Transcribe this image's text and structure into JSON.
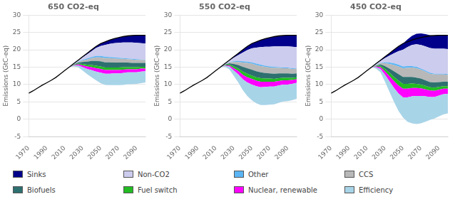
{
  "chart_data": [
    {
      "type": "area",
      "title": "650 CO2-eq",
      "y_label": "Emissions (GtC-eq)",
      "stacked": true,
      "grid": true,
      "legend": "bottom",
      "x": [
        1970,
        1975,
        1980,
        1985,
        1990,
        1995,
        2000,
        2005,
        2010,
        2015,
        2020,
        2025,
        2030,
        2035,
        2040,
        2045,
        2050,
        2055,
        2060,
        2065,
        2070,
        2075,
        2080,
        2085,
        2090,
        2095,
        2100
      ],
      "xlim": [
        1970,
        2100
      ],
      "xticks": [
        1970,
        1990,
        2010,
        2030,
        2050,
        2070,
        2090
      ],
      "ylim": [
        -5,
        30
      ],
      "yticks": [
        -5,
        0,
        5,
        10,
        15,
        20,
        25,
        30
      ],
      "series": [
        {
          "values": [
            7.5,
            8.2,
            9.0,
            9.8,
            10.5,
            11.2,
            12.0,
            13.0,
            14.0,
            15.0,
            15.2,
            15.0,
            14.0,
            13.0,
            12.1,
            11.2,
            10.4,
            9.9,
            9.8,
            9.8,
            9.8,
            9.9,
            10.1,
            10.1,
            10.2,
            10.4,
            10.6
          ]
        },
        {
          "name": "Efficiency",
          "color": "#a8d4e8",
          "values": [
            0.0,
            0.0,
            0.0,
            0.0,
            0.0,
            0.0,
            0.0,
            0.0,
            0.0,
            0.0,
            0.2,
            0.5,
            1.0,
            1.5,
            2.0,
            2.5,
            3.0,
            3.2,
            3.3,
            3.4,
            3.4,
            3.4,
            3.4,
            3.4,
            3.3,
            3.3,
            3.2
          ]
        },
        {
          "name": "Nuclear, renewable",
          "color": "#ff00ff",
          "values": [
            0.0,
            0.0,
            0.0,
            0.0,
            0.0,
            0.0,
            0.0,
            0.0,
            0.0,
            0.0,
            0.1,
            0.3,
            0.5,
            0.7,
            0.9,
            1.0,
            1.1,
            1.1,
            1.1,
            1.0,
            1.0,
            1.0,
            0.9,
            0.9,
            0.9,
            0.9,
            0.8
          ]
        },
        {
          "name": "Fuel switch",
          "color": "#22bb22",
          "values": [
            0.0,
            0.0,
            0.0,
            0.0,
            0.0,
            0.0,
            0.0,
            0.0,
            0.0,
            0.0,
            0.1,
            0.2,
            0.4,
            0.5,
            0.6,
            0.7,
            0.7,
            0.7,
            0.7,
            0.7,
            0.7,
            0.7,
            0.6,
            0.6,
            0.6,
            0.5,
            0.5
          ]
        },
        {
          "name": "Biofuels",
          "color": "#2e7070",
          "values": [
            0.0,
            0.0,
            0.0,
            0.0,
            0.0,
            0.0,
            0.0,
            0.0,
            0.0,
            0.0,
            0.1,
            0.3,
            0.6,
            0.9,
            1.2,
            1.4,
            1.5,
            1.5,
            1.5,
            1.4,
            1.4,
            1.3,
            1.3,
            1.2,
            1.2,
            1.1,
            1.1
          ]
        },
        {
          "name": "CCS",
          "color": "#b8b8b8",
          "values": [
            0.0,
            0.0,
            0.0,
            0.0,
            0.0,
            0.0,
            0.0,
            0.0,
            0.0,
            0.0,
            0.1,
            0.2,
            0.4,
            0.6,
            0.8,
            1.0,
            1.1,
            1.2,
            1.2,
            1.2,
            1.1,
            1.1,
            1.0,
            1.0,
            0.9,
            0.9,
            0.8
          ]
        },
        {
          "name": "Other",
          "color": "#5bb5f5",
          "values": [
            0.0,
            0.0,
            0.0,
            0.0,
            0.0,
            0.0,
            0.0,
            0.0,
            0.0,
            0.0,
            0.1,
            0.1,
            0.2,
            0.3,
            0.3,
            0.4,
            0.4,
            0.4,
            0.3,
            0.3,
            0.3,
            0.2,
            0.2,
            0.2,
            0.2,
            0.1,
            0.1
          ]
        },
        {
          "name": "Non-CO2",
          "color": "#ccccee",
          "values": [
            0.0,
            0.0,
            0.0,
            0.0,
            0.0,
            0.0,
            0.0,
            0.0,
            0.0,
            0.0,
            0.1,
            0.3,
            0.7,
            1.2,
            1.7,
            2.3,
            2.9,
            3.4,
            3.8,
            4.1,
            4.3,
            4.5,
            4.6,
            4.7,
            4.7,
            4.7,
            4.7
          ]
        },
        {
          "name": "Sinks",
          "color": "#00008b",
          "values": [
            0.0,
            0.0,
            0.0,
            0.0,
            0.0,
            0.0,
            0.0,
            0.0,
            0.0,
            0.0,
            0.0,
            0.1,
            0.2,
            0.3,
            0.4,
            0.5,
            0.7,
            0.9,
            1.1,
            1.3,
            1.5,
            1.7,
            1.9,
            2.0,
            2.2,
            2.3,
            2.4
          ]
        },
        {
          "type": "line",
          "color": "#000000",
          "values": [
            7.5,
            8.2,
            9.0,
            9.8,
            10.5,
            11.2,
            12.0,
            13.0,
            14.0,
            15.0,
            16.0,
            17.0,
            18.0,
            19.0,
            20.0,
            21.0,
            21.8,
            22.3,
            22.8,
            23.2,
            23.5,
            23.8,
            24.0,
            24.1,
            24.2,
            24.2,
            24.2
          ]
        }
      ]
    },
    {
      "type": "area",
      "title": "550 CO2-eq",
      "y_label": "Emissions (GtC-eq)",
      "stacked": true,
      "grid": true,
      "legend": "bottom",
      "x": [
        1970,
        1975,
        1980,
        1985,
        1990,
        1995,
        2000,
        2005,
        2010,
        2015,
        2020,
        2025,
        2030,
        2035,
        2040,
        2045,
        2050,
        2055,
        2060,
        2065,
        2070,
        2075,
        2080,
        2085,
        2090,
        2095,
        2100
      ],
      "xlim": [
        1970,
        2100
      ],
      "xticks": [
        1970,
        1990,
        2010,
        2030,
        2050,
        2070,
        2090
      ],
      "ylim": [
        -5,
        30
      ],
      "yticks": [
        -5,
        0,
        5,
        10,
        15,
        20,
        25,
        30
      ],
      "series": [
        {
          "values": [
            7.5,
            8.2,
            9.0,
            9.8,
            10.5,
            11.2,
            12.0,
            13.0,
            14.0,
            15.0,
            15.1,
            14.4,
            12.5,
            10.6,
            8.4,
            6.7,
            5.5,
            4.6,
            4.1,
            4.1,
            4.2,
            4.3,
            4.7,
            5.1,
            5.2,
            5.5,
            5.9
          ]
        },
        {
          "name": "Efficiency",
          "color": "#a8d4e8",
          "values": [
            0.0,
            0.0,
            0.0,
            0.0,
            0.0,
            0.0,
            0.0,
            0.0,
            0.0,
            0.0,
            0.3,
            0.8,
            1.5,
            2.3,
            3.1,
            3.9,
            4.5,
            4.9,
            5.1,
            5.2,
            5.2,
            5.1,
            5.0,
            4.9,
            4.8,
            4.7,
            4.6
          ]
        },
        {
          "name": "Nuclear, renewable",
          "color": "#ff00ff",
          "values": [
            0.0,
            0.0,
            0.0,
            0.0,
            0.0,
            0.0,
            0.0,
            0.0,
            0.0,
            0.0,
            0.1,
            0.3,
            0.7,
            1.0,
            1.3,
            1.5,
            1.6,
            1.6,
            1.6,
            1.5,
            1.4,
            1.4,
            1.3,
            1.2,
            1.2,
            1.1,
            1.0
          ]
        },
        {
          "name": "Fuel switch",
          "color": "#22bb22",
          "values": [
            0.0,
            0.0,
            0.0,
            0.0,
            0.0,
            0.0,
            0.0,
            0.0,
            0.0,
            0.0,
            0.1,
            0.3,
            0.5,
            0.7,
            0.9,
            1.0,
            1.0,
            1.0,
            1.0,
            0.9,
            0.9,
            0.8,
            0.8,
            0.7,
            0.7,
            0.6,
            0.6
          ]
        },
        {
          "name": "Biofuels",
          "color": "#2e7070",
          "values": [
            0.0,
            0.0,
            0.0,
            0.0,
            0.0,
            0.0,
            0.0,
            0.0,
            0.0,
            0.0,
            0.1,
            0.3,
            0.7,
            1.0,
            1.4,
            1.6,
            1.7,
            1.7,
            1.7,
            1.6,
            1.5,
            1.5,
            1.4,
            1.3,
            1.3,
            1.2,
            1.1
          ]
        },
        {
          "name": "CCS",
          "color": "#b8b8b8",
          "values": [
            0.0,
            0.0,
            0.0,
            0.0,
            0.0,
            0.0,
            0.0,
            0.0,
            0.0,
            0.0,
            0.1,
            0.3,
            0.6,
            0.9,
            1.2,
            1.5,
            1.7,
            1.8,
            1.8,
            1.8,
            1.7,
            1.7,
            1.6,
            1.5,
            1.5,
            1.4,
            1.3
          ]
        },
        {
          "name": "Other",
          "color": "#5bb5f5",
          "values": [
            0.0,
            0.0,
            0.0,
            0.0,
            0.0,
            0.0,
            0.0,
            0.0,
            0.0,
            0.0,
            0.1,
            0.1,
            0.2,
            0.3,
            0.4,
            0.4,
            0.4,
            0.4,
            0.4,
            0.3,
            0.3,
            0.3,
            0.2,
            0.2,
            0.2,
            0.2,
            0.1
          ]
        },
        {
          "name": "Non-CO2",
          "color": "#ccccee",
          "values": [
            0.0,
            0.0,
            0.0,
            0.0,
            0.0,
            0.0,
            0.0,
            0.0,
            0.0,
            0.0,
            0.1,
            0.4,
            1.0,
            1.7,
            2.5,
            3.3,
            4.0,
            4.6,
            5.1,
            5.5,
            5.7,
            5.9,
            6.0,
            6.1,
            6.1,
            6.2,
            6.2
          ]
        },
        {
          "name": "Sinks",
          "color": "#00008b",
          "values": [
            0.0,
            0.0,
            0.0,
            0.0,
            0.0,
            0.0,
            0.0,
            0.0,
            0.0,
            0.0,
            0.0,
            0.1,
            0.3,
            0.5,
            0.8,
            1.1,
            1.4,
            1.7,
            2.0,
            2.3,
            2.6,
            2.8,
            3.0,
            3.1,
            3.2,
            3.3,
            3.4
          ]
        },
        {
          "type": "line",
          "color": "#000000",
          "values": [
            7.5,
            8.2,
            9.0,
            9.8,
            10.5,
            11.2,
            12.0,
            13.0,
            14.0,
            15.0,
            16.0,
            17.0,
            18.0,
            19.0,
            20.0,
            21.0,
            21.8,
            22.3,
            22.8,
            23.2,
            23.5,
            23.8,
            24.0,
            24.1,
            24.2,
            24.2,
            24.2
          ]
        }
      ]
    },
    {
      "type": "area",
      "title": "450 CO2-eq",
      "y_label": "Emissions (GtC-eq)",
      "stacked": true,
      "grid": true,
      "legend": "bottom",
      "x": [
        1970,
        1975,
        1980,
        1985,
        1990,
        1995,
        2000,
        2005,
        2010,
        2015,
        2020,
        2025,
        2030,
        2035,
        2040,
        2045,
        2050,
        2055,
        2060,
        2065,
        2070,
        2075,
        2080,
        2085,
        2090,
        2095,
        2100
      ],
      "xlim": [
        1970,
        2100
      ],
      "xticks": [
        1970,
        1990,
        2010,
        2030,
        2050,
        2070,
        2090
      ],
      "ylim": [
        -5,
        30
      ],
      "yticks": [
        -5,
        0,
        5,
        10,
        15,
        20,
        25,
        30
      ],
      "series": [
        {
          "values": [
            7.5,
            8.2,
            9.0,
            9.8,
            10.5,
            11.2,
            12.0,
            13.0,
            14.0,
            15.0,
            14.6,
            13.5,
            10.8,
            7.9,
            5.0,
            2.4,
            0.5,
            -0.7,
            -1.2,
            -1.4,
            -1.2,
            -0.7,
            -0.2,
            0.2,
            0.8,
            1.4,
            1.7
          ]
        },
        {
          "name": "Efficiency",
          "color": "#a8d4e8",
          "values": [
            0.0,
            0.0,
            0.0,
            0.0,
            0.0,
            0.0,
            0.0,
            0.0,
            0.0,
            0.0,
            0.4,
            1.0,
            2.0,
            3.0,
            4.0,
            5.0,
            5.8,
            6.3,
            6.6,
            6.7,
            6.7,
            6.6,
            6.4,
            6.2,
            6.0,
            5.8,
            5.6
          ]
        },
        {
          "name": "Nuclear, renewable",
          "color": "#ff00ff",
          "values": [
            0.0,
            0.0,
            0.0,
            0.0,
            0.0,
            0.0,
            0.0,
            0.0,
            0.0,
            0.0,
            0.2,
            0.5,
            1.0,
            1.5,
            2.0,
            2.3,
            2.5,
            2.5,
            2.4,
            2.3,
            2.2,
            2.0,
            1.9,
            1.8,
            1.7,
            1.6,
            1.5
          ]
        },
        {
          "name": "Fuel switch",
          "color": "#22bb22",
          "values": [
            0.0,
            0.0,
            0.0,
            0.0,
            0.0,
            0.0,
            0.0,
            0.0,
            0.0,
            0.0,
            0.1,
            0.4,
            0.7,
            1.0,
            1.2,
            1.4,
            1.4,
            1.4,
            1.3,
            1.2,
            1.1,
            1.0,
            0.9,
            0.9,
            0.8,
            0.7,
            0.7
          ]
        },
        {
          "name": "Biofuels",
          "color": "#2e7070",
          "values": [
            0.0,
            0.0,
            0.0,
            0.0,
            0.0,
            0.0,
            0.0,
            0.0,
            0.0,
            0.0,
            0.1,
            0.4,
            0.8,
            1.2,
            1.6,
            1.9,
            2.0,
            2.0,
            1.9,
            1.8,
            1.7,
            1.6,
            1.5,
            1.5,
            1.4,
            1.3,
            1.3
          ]
        },
        {
          "name": "CCS",
          "color": "#b8b8b8",
          "values": [
            0.0,
            0.0,
            0.0,
            0.0,
            0.0,
            0.0,
            0.0,
            0.0,
            0.0,
            0.0,
            0.2,
            0.4,
            0.8,
            1.3,
            1.8,
            2.2,
            2.5,
            2.6,
            2.7,
            2.7,
            2.6,
            2.5,
            2.4,
            2.3,
            2.2,
            2.1,
            2.0
          ]
        },
        {
          "name": "Other",
          "color": "#5bb5f5",
          "values": [
            0.0,
            0.0,
            0.0,
            0.0,
            0.0,
            0.0,
            0.0,
            0.0,
            0.0,
            0.0,
            0.1,
            0.1,
            0.3,
            0.4,
            0.5,
            0.5,
            0.5,
            0.5,
            0.4,
            0.4,
            0.3,
            0.3,
            0.3,
            0.2,
            0.2,
            0.2,
            0.2
          ]
        },
        {
          "name": "Non-CO2",
          "color": "#ccccee",
          "values": [
            0.0,
            0.0,
            0.0,
            0.0,
            0.0,
            0.0,
            0.0,
            0.0,
            0.0,
            0.0,
            0.2,
            0.5,
            1.2,
            2.0,
            2.9,
            3.9,
            4.8,
            5.5,
            6.1,
            6.5,
            6.8,
            7.0,
            7.1,
            7.2,
            7.2,
            7.2,
            7.2
          ]
        },
        {
          "name": "Sinks",
          "color": "#00008b",
          "values": [
            0.0,
            0.0,
            0.0,
            0.0,
            0.0,
            0.0,
            0.0,
            0.0,
            0.0,
            0.0,
            0.1,
            0.2,
            0.4,
            0.7,
            1.0,
            1.4,
            1.8,
            2.2,
            2.6,
            3.0,
            3.3,
            3.5,
            3.7,
            3.8,
            3.9,
            3.9,
            4.0
          ]
        },
        {
          "type": "line",
          "color": "#000000",
          "values": [
            7.5,
            8.2,
            9.0,
            9.8,
            10.5,
            11.2,
            12.0,
            13.0,
            14.0,
            15.0,
            16.0,
            17.0,
            18.0,
            19.0,
            20.0,
            21.0,
            21.8,
            22.3,
            22.8,
            23.2,
            23.5,
            23.8,
            24.0,
            24.1,
            24.2,
            24.2,
            24.2
          ]
        }
      ]
    }
  ]
}
